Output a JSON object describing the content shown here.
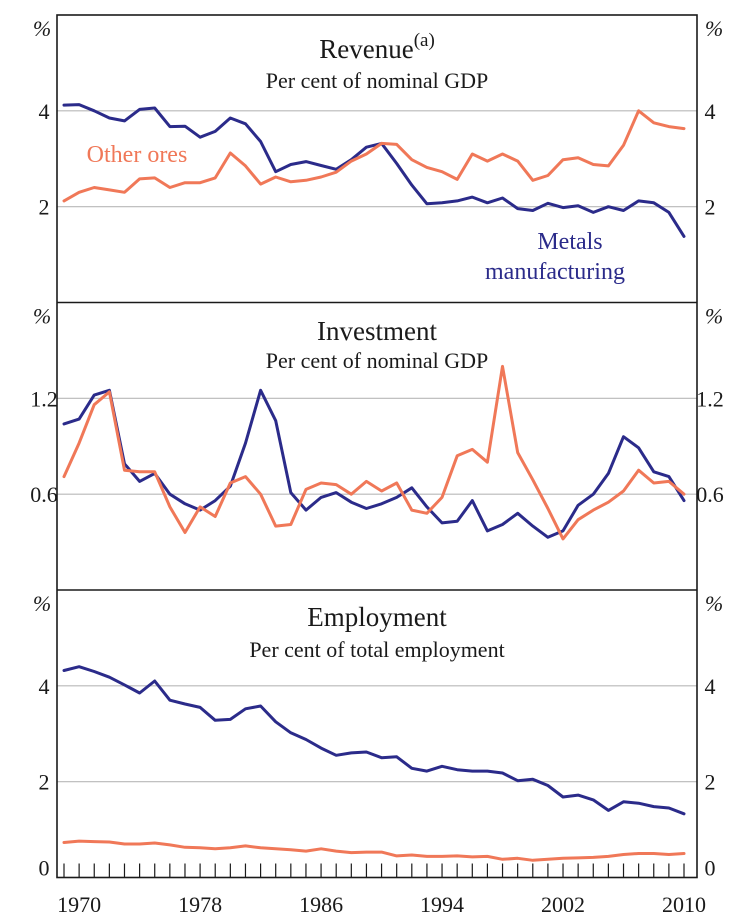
{
  "chart_data": {
    "type": "line",
    "colors": {
      "metals": "#2b2b8a",
      "ores": "#f07858"
    },
    "x_tick_labels": [
      "1970",
      "1978",
      "1986",
      "1994",
      "2002",
      "2010"
    ],
    "x_range": [
      1969,
      2010
    ],
    "panels": [
      {
        "key": "revenue",
        "title": "Revenue",
        "title_superscript": "(a)",
        "subtitle": "Per cent of nominal GDP",
        "unit": "%",
        "ylim": [
          0,
          6
        ],
        "y_ticks": [
          {
            "value": 2,
            "label": "2"
          },
          {
            "value": 4,
            "label": "4"
          }
        ],
        "series": [
          {
            "name": "Metals manufacturing",
            "label_lines": [
              "Metals",
              "manufacturing"
            ],
            "color": "#2b2b8a",
            "x": [
              1969,
              1970,
              1971,
              1972,
              1973,
              1974,
              1975,
              1976,
              1977,
              1978,
              1979,
              1980,
              1981,
              1982,
              1983,
              1984,
              1985,
              1986,
              1987,
              1988,
              1989,
              1990,
              1991,
              1992,
              1993,
              1994,
              1995,
              1996,
              1997,
              1998,
              1999,
              2000,
              2001,
              2002,
              2003,
              2004,
              2005,
              2006,
              2007,
              2008,
              2009,
              2010
            ],
            "values": [
              4.12,
              4.13,
              4.0,
              3.85,
              3.79,
              4.03,
              4.06,
              3.67,
              3.68,
              3.45,
              3.57,
              3.85,
              3.73,
              3.36,
              2.73,
              2.88,
              2.94,
              2.86,
              2.78,
              2.98,
              3.24,
              3.32,
              2.9,
              2.45,
              2.06,
              2.08,
              2.12,
              2.2,
              2.08,
              2.18,
              1.96,
              1.92,
              2.07,
              1.98,
              2.02,
              1.88,
              2.0,
              1.92,
              2.12,
              2.08,
              1.88,
              1.38
            ]
          },
          {
            "name": "Other ores",
            "label_lines": [
              "Other ores"
            ],
            "color": "#f07858",
            "x": [
              1969,
              1970,
              1971,
              1972,
              1973,
              1974,
              1975,
              1976,
              1977,
              1978,
              1979,
              1980,
              1981,
              1982,
              1983,
              1984,
              1985,
              1986,
              1987,
              1988,
              1989,
              1990,
              1991,
              1992,
              1993,
              1994,
              1995,
              1996,
              1997,
              1998,
              1999,
              2000,
              2001,
              2002,
              2003,
              2004,
              2005,
              2006,
              2007,
              2008,
              2009,
              2010
            ],
            "values": [
              2.12,
              2.3,
              2.4,
              2.35,
              2.3,
              2.58,
              2.6,
              2.4,
              2.5,
              2.5,
              2.6,
              3.12,
              2.85,
              2.47,
              2.62,
              2.52,
              2.55,
              2.62,
              2.72,
              2.95,
              3.1,
              3.32,
              3.3,
              2.98,
              2.82,
              2.73,
              2.57,
              3.1,
              2.95,
              3.1,
              2.95,
              2.55,
              2.65,
              2.98,
              3.02,
              2.88,
              2.85,
              3.28,
              4.0,
              3.75,
              3.67,
              3.63
            ]
          }
        ]
      },
      {
        "key": "investment",
        "title": "Investment",
        "subtitle": "Per cent of nominal GDP",
        "unit": "%",
        "ylim": [
          0,
          1.8
        ],
        "y_ticks": [
          {
            "value": 0.6,
            "label": "0.6"
          },
          {
            "value": 1.2,
            "label": "1.2"
          }
        ],
        "series": [
          {
            "name": "Metals manufacturing",
            "color": "#2b2b8a",
            "x": [
              1969,
              1970,
              1971,
              1972,
              1973,
              1974,
              1975,
              1976,
              1977,
              1978,
              1979,
              1980,
              1981,
              1982,
              1983,
              1984,
              1985,
              1986,
              1987,
              1988,
              1989,
              1990,
              1991,
              1992,
              1993,
              1994,
              1995,
              1996,
              1997,
              1998,
              1999,
              2000,
              2001,
              2002,
              2003,
              2004,
              2005,
              2006,
              2007,
              2008,
              2009,
              2010
            ],
            "values": [
              1.04,
              1.07,
              1.22,
              1.25,
              0.79,
              0.68,
              0.73,
              0.6,
              0.54,
              0.5,
              0.56,
              0.65,
              0.92,
              1.25,
              1.06,
              0.61,
              0.5,
              0.58,
              0.61,
              0.55,
              0.51,
              0.54,
              0.58,
              0.64,
              0.52,
              0.42,
              0.43,
              0.56,
              0.37,
              0.41,
              0.48,
              0.4,
              0.33,
              0.37,
              0.53,
              0.6,
              0.73,
              0.96,
              0.89,
              0.74,
              0.71,
              0.56
            ]
          },
          {
            "name": "Other ores",
            "color": "#f07858",
            "x": [
              1969,
              1970,
              1971,
              1972,
              1973,
              1974,
              1975,
              1976,
              1977,
              1978,
              1979,
              1980,
              1981,
              1982,
              1983,
              1984,
              1985,
              1986,
              1987,
              1988,
              1989,
              1990,
              1991,
              1992,
              1993,
              1994,
              1995,
              1996,
              1997,
              1998,
              1999,
              2000,
              2001,
              2002,
              2003,
              2004,
              2005,
              2006,
              2007,
              2008,
              2009,
              2010
            ],
            "values": [
              0.71,
              0.92,
              1.16,
              1.24,
              0.75,
              0.74,
              0.74,
              0.52,
              0.36,
              0.52,
              0.46,
              0.67,
              0.71,
              0.6,
              0.4,
              0.41,
              0.63,
              0.67,
              0.66,
              0.6,
              0.68,
              0.62,
              0.67,
              0.5,
              0.48,
              0.58,
              0.84,
              0.88,
              0.8,
              1.4,
              0.86,
              0.69,
              0.51,
              0.32,
              0.44,
              0.5,
              0.55,
              0.62,
              0.75,
              0.67,
              0.68,
              0.6
            ]
          }
        ]
      },
      {
        "key": "employment",
        "title": "Employment",
        "subtitle": "Per cent of total employment",
        "unit": "%",
        "ylim": [
          0,
          6
        ],
        "y_ticks": [
          {
            "value": 0,
            "label": "0"
          },
          {
            "value": 2,
            "label": "2"
          },
          {
            "value": 4,
            "label": "4"
          }
        ],
        "series": [
          {
            "name": "Metals manufacturing",
            "color": "#2b2b8a",
            "x": [
              1969,
              1970,
              1971,
              1972,
              1973,
              1974,
              1975,
              1976,
              1977,
              1978,
              1979,
              1980,
              1981,
              1982,
              1983,
              1984,
              1985,
              1986,
              1987,
              1988,
              1989,
              1990,
              1991,
              1992,
              1993,
              1994,
              1995,
              1996,
              1997,
              1998,
              1999,
              2000,
              2001,
              2002,
              2003,
              2004,
              2005,
              2006,
              2007,
              2008,
              2009,
              2010
            ],
            "values": [
              4.32,
              4.4,
              4.3,
              4.18,
              4.02,
              3.85,
              4.1,
              3.7,
              3.62,
              3.55,
              3.28,
              3.3,
              3.52,
              3.58,
              3.25,
              3.02,
              2.88,
              2.7,
              2.55,
              2.6,
              2.62,
              2.5,
              2.52,
              2.28,
              2.22,
              2.32,
              2.25,
              2.22,
              2.22,
              2.18,
              2.02,
              2.05,
              1.92,
              1.68,
              1.72,
              1.62,
              1.4,
              1.58,
              1.55,
              1.48,
              1.45,
              1.33
            ]
          },
          {
            "name": "Other ores",
            "color": "#f07858",
            "x": [
              1969,
              1970,
              1971,
              1972,
              1973,
              1974,
              1975,
              1976,
              1977,
              1978,
              1979,
              1980,
              1981,
              1982,
              1983,
              1984,
              1985,
              1986,
              1987,
              1988,
              1989,
              1990,
              1991,
              1992,
              1993,
              1994,
              1995,
              1996,
              1997,
              1998,
              1999,
              2000,
              2001,
              2002,
              2003,
              2004,
              2005,
              2006,
              2007,
              2008,
              2009,
              2010
            ],
            "values": [
              0.73,
              0.76,
              0.75,
              0.74,
              0.7,
              0.7,
              0.72,
              0.68,
              0.63,
              0.62,
              0.6,
              0.62,
              0.66,
              0.62,
              0.6,
              0.58,
              0.55,
              0.6,
              0.55,
              0.52,
              0.53,
              0.53,
              0.45,
              0.47,
              0.44,
              0.44,
              0.45,
              0.43,
              0.44,
              0.38,
              0.4,
              0.36,
              0.38,
              0.4,
              0.41,
              0.42,
              0.44,
              0.48,
              0.5,
              0.5,
              0.48,
              0.5
            ]
          }
        ]
      }
    ]
  }
}
